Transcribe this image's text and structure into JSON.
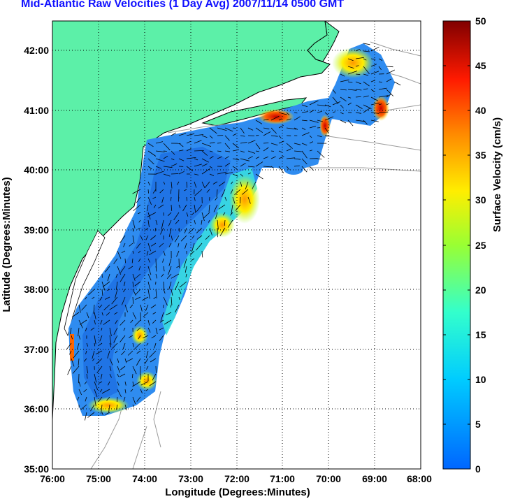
{
  "title": "Mid-Atlantic Raw Velocities (1 Day Avg) 2007/11/14 0500 GMT",
  "map": {
    "xlabel": "Longitude (Degrees:Minutes)",
    "ylabel": "Latitude (Degrees:Minutes)",
    "x_ticks": [
      "76:00",
      "75:00",
      "74:00",
      "73:00",
      "72:00",
      "71:00",
      "70:00",
      "69:00",
      "68:00"
    ],
    "y_ticks": [
      "35:00",
      "36:00",
      "37:00",
      "38:00",
      "39:00",
      "40:00",
      "41:00",
      "42:00"
    ],
    "lon_range": [
      -76,
      -68
    ],
    "lat_range": [
      35,
      42.5
    ],
    "grid": true,
    "colors": {
      "land": "#5cf0a8",
      "water": "#ffffff",
      "bathymetry": "#9a9a9a"
    }
  },
  "colorbar": {
    "label": "Surface Velocity (cm/s)",
    "ticks": [
      "0",
      "5",
      "10",
      "15",
      "20",
      "25",
      "30",
      "35",
      "40",
      "45",
      "50"
    ],
    "range": [
      0,
      50
    ],
    "colormap": "jet"
  }
}
